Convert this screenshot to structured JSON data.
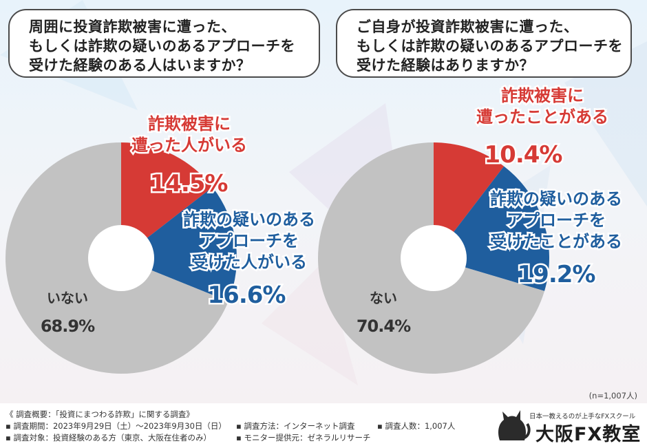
{
  "chart_data": [
    {
      "type": "pie",
      "title": [
        "周囲に投資詐欺被害に遭った、",
        "もしくは詐欺の疑いのあるアプローチを",
        "受けた経験のある人はいますか？"
      ],
      "slices": [
        {
          "label": [
            "詐欺被害に",
            "遭った人がいる"
          ],
          "value": 14.5,
          "value_text": "14.5%",
          "color": "#d63a35"
        },
        {
          "label": [
            "詐欺の疑いのある",
            "アプローチを",
            "受けた人がいる"
          ],
          "value": 16.6,
          "value_text": "16.6%",
          "color": "#1f5e9e"
        },
        {
          "label": [
            "いない"
          ],
          "value": 68.9,
          "value_text": "68.9%",
          "color": "#c2c2c2"
        }
      ]
    },
    {
      "type": "pie",
      "title": [
        "ご自身が投資詐欺被害に遭った、",
        "もしくは詐欺の疑いのあるアプローチを",
        "受けた経験はありますか？"
      ],
      "slices": [
        {
          "label": [
            "詐欺被害に",
            "遭ったことがある"
          ],
          "value": 10.4,
          "value_text": "10.4%",
          "color": "#d63a35"
        },
        {
          "label": [
            "詐欺の疑いのある",
            "アプローチを",
            "受けたことがある"
          ],
          "value": 19.2,
          "value_text": "19.2%",
          "color": "#1f5e9e"
        },
        {
          "label": [
            "ない"
          ],
          "value": 70.4,
          "value_text": "70.4%",
          "color": "#c2c2c2"
        }
      ]
    }
  ],
  "sample_size": "(n=1,007人)",
  "survey": {
    "overview": "《 調査概要：「投資にまつわる詐欺」に関する調査》",
    "period": "▪ 調査期間：2023年9月29日（土）～2023年9月30日（日）",
    "method": "▪ 調査方法：インターネット調査",
    "count": "▪ 調査人数：1,007人",
    "target": "▪ 調査対象：投資経験のある方（東京、大阪在住者のみ）",
    "provider": "▪ モニター提供元：ゼネラルリサーチ"
  },
  "logo": {
    "tagline": "日本一教えるのが上手なFXスクール",
    "name": "大阪FX教室"
  },
  "colors": {
    "red": "#d63a35",
    "blue": "#1f5e9e",
    "gray": "#c2c2c2"
  }
}
